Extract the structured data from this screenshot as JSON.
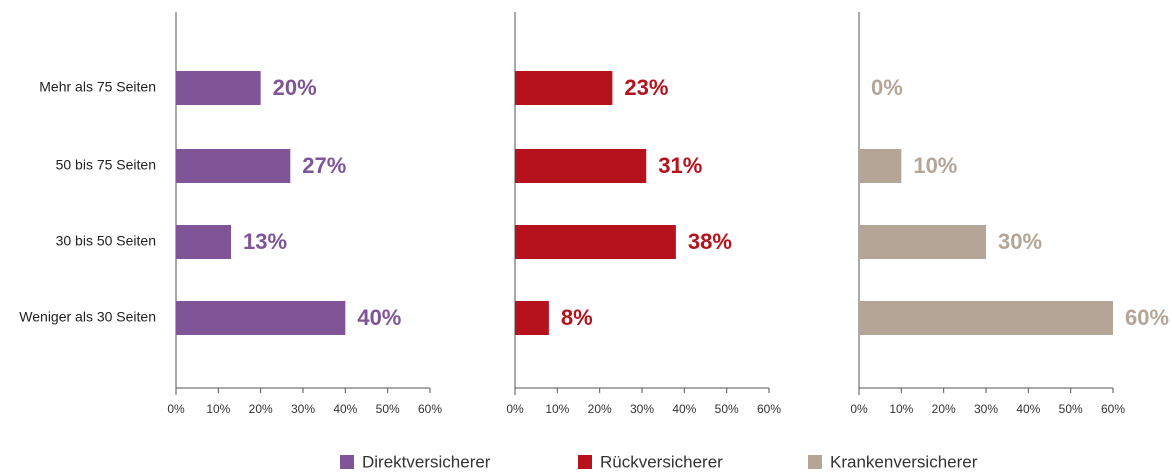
{
  "chart_data": {
    "type": "hbar",
    "categories": [
      "Mehr als 75 Seiten",
      "50 bis 75 Seiten",
      "30 bis 50 Seiten",
      "Weniger als 30 Seiten"
    ],
    "series": [
      {
        "name": "Direktversicherer",
        "color": "#7f5597",
        "values": [
          20,
          27,
          13,
          40
        ],
        "value_labels": [
          "20%",
          "27%",
          "13%",
          "40%"
        ]
      },
      {
        "name": "Rückversicherer",
        "color": "#b5121b",
        "values": [
          23,
          31,
          38,
          8
        ],
        "value_labels": [
          "23%",
          "31%",
          "38%",
          "8%"
        ]
      },
      {
        "name": "Krankenversicherer",
        "color": "#b5a597",
        "values": [
          0,
          10,
          30,
          60
        ],
        "value_labels": [
          "0%",
          "10%",
          "30%",
          "60%"
        ]
      }
    ],
    "xlim": [
      0,
      60
    ],
    "xticks": [
      {
        "value": 0,
        "label": "0%"
      },
      {
        "value": 10,
        "label": "10%"
      },
      {
        "value": 20,
        "label": "20%"
      },
      {
        "value": 30,
        "label": "30%"
      },
      {
        "value": 40,
        "label": "40%"
      },
      {
        "value": 50,
        "label": "50%"
      },
      {
        "value": 60,
        "label": "60%"
      }
    ]
  }
}
